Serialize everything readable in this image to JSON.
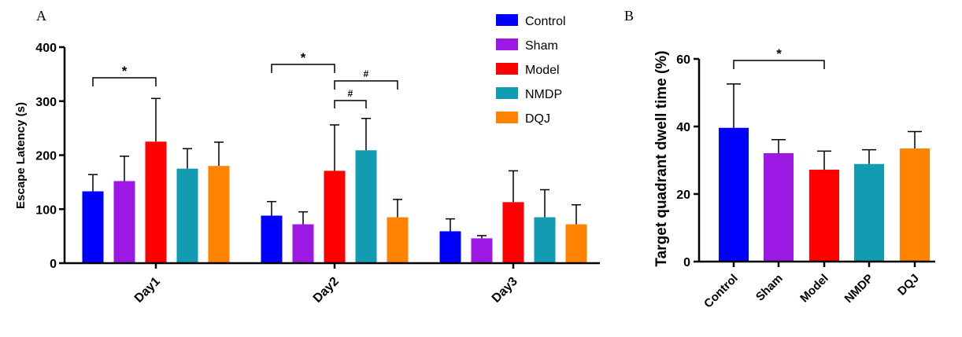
{
  "colors": {
    "Control": "#0000FF",
    "Sham": "#9B19E3",
    "Model": "#FF0000",
    "NMDP": "#129CB1",
    "DQJ": "#FF8200"
  },
  "chart_data": [
    {
      "panel": "A",
      "type": "bar",
      "ylabel": "Escape Latency (s)",
      "xlabel": "",
      "ylim": [
        0,
        400
      ],
      "yticks": [
        0,
        100,
        200,
        300,
        400
      ],
      "categories": [
        "Day1",
        "Day2",
        "Day3"
      ],
      "series": [
        {
          "name": "Control",
          "values": [
            133,
            88,
            59
          ],
          "errors": [
            31,
            26,
            23
          ]
        },
        {
          "name": "Sham",
          "values": [
            152,
            72,
            46
          ],
          "errors": [
            46,
            23,
            5
          ]
        },
        {
          "name": "Model",
          "values": [
            225,
            171,
            113
          ],
          "errors": [
            80,
            85,
            58
          ]
        },
        {
          "name": "NMDP",
          "values": [
            175,
            209,
            85
          ],
          "errors": [
            37,
            59,
            51
          ]
        },
        {
          "name": "DQJ",
          "values": [
            180,
            85,
            72
          ],
          "errors": [
            44,
            33,
            36
          ]
        }
      ],
      "legend": [
        "Control",
        "Sham",
        "Model",
        "NMDP",
        "DQJ"
      ],
      "legend_position": "top-right",
      "annotations": [
        {
          "text": "*",
          "category": "Day1",
          "from": "Control",
          "to": "Model"
        },
        {
          "text": "*",
          "category": "Day2",
          "from": "Control",
          "to": "Model"
        },
        {
          "text": "#",
          "category": "Day2",
          "from": "Model",
          "to": "DQJ"
        },
        {
          "text": "#",
          "category": "Day2",
          "from": "Model",
          "to": "NMDP"
        }
      ]
    },
    {
      "panel": "B",
      "type": "bar",
      "ylabel": "Target quadrant dwell time (%)",
      "xlabel": "",
      "ylim": [
        0,
        60
      ],
      "yticks": [
        0,
        20,
        40,
        60
      ],
      "categories": [
        "Control",
        "Sham",
        "Model",
        "NMDP",
        "DQJ"
      ],
      "values": [
        39.6,
        32.1,
        27.2,
        28.9,
        33.5
      ],
      "errors": [
        13,
        4,
        5.5,
        4.2,
        5
      ],
      "annotations": [
        {
          "text": "*",
          "from": "Control",
          "to": "Model"
        }
      ]
    }
  ]
}
